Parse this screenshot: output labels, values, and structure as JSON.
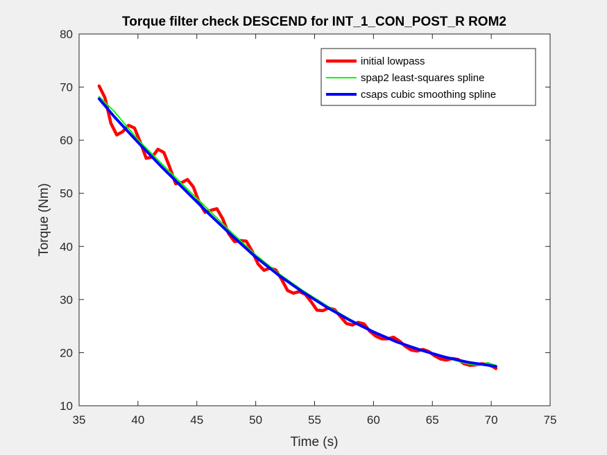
{
  "chart_data": {
    "type": "line",
    "title": "Torque filter check DESCEND for INT_1_CON_POST_R ROM2",
    "xlabel": "Time (s)",
    "ylabel": "Torque (Nm)",
    "xlim": [
      35,
      75
    ],
    "ylim": [
      10,
      80
    ],
    "xticks": [
      35,
      40,
      45,
      50,
      55,
      60,
      65,
      70,
      75
    ],
    "yticks": [
      10,
      20,
      30,
      40,
      50,
      60,
      70,
      80
    ],
    "grid": false,
    "legend_position": "top-right",
    "series": [
      {
        "name": "initial lowpass",
        "color": "#ff0000",
        "x": [
          36.7,
          37.2,
          37.7,
          38.2,
          38.7,
          39.2,
          39.7,
          40.2,
          40.7,
          41.2,
          41.7,
          42.2,
          42.7,
          43.2,
          43.7,
          44.2,
          44.7,
          45.2,
          45.7,
          46.2,
          46.7,
          47.2,
          47.7,
          48.2,
          48.7,
          49.2,
          49.7,
          50.2,
          50.7,
          51.2,
          51.7,
          52.2,
          52.7,
          53.2,
          53.7,
          54.2,
          54.7,
          55.2,
          55.7,
          56.2,
          56.7,
          57.2,
          57.7,
          58.2,
          58.7,
          59.2,
          59.7,
          60.2,
          60.7,
          61.2,
          61.7,
          62.2,
          62.7,
          63.2,
          63.7,
          64.2,
          64.7,
          65.2,
          65.7,
          66.2,
          66.7,
          67.2,
          67.7,
          68.2,
          68.7,
          69.2,
          69.7,
          70.2,
          70.4
        ],
        "y": [
          70.2,
          68.0,
          63.2,
          61.0,
          61.6,
          62.8,
          62.3,
          59.6,
          56.6,
          56.8,
          58.3,
          57.7,
          54.9,
          51.8,
          52.0,
          52.6,
          51.2,
          48.3,
          46.4,
          46.8,
          47.1,
          45.2,
          42.4,
          40.9,
          41.1,
          41.0,
          39.1,
          36.7,
          35.5,
          35.9,
          35.6,
          33.8,
          31.7,
          31.2,
          31.5,
          31.0,
          29.6,
          28.0,
          27.9,
          28.4,
          28.1,
          26.8,
          25.5,
          25.2,
          25.7,
          25.4,
          24.0,
          23.1,
          22.6,
          22.6,
          22.9,
          22.2,
          21.2,
          20.5,
          20.3,
          20.6,
          20.2,
          19.4,
          18.8,
          18.6,
          18.9,
          18.7,
          17.9,
          17.6,
          17.7,
          17.9,
          17.8,
          17.3,
          17.0
        ]
      },
      {
        "name": "spap2 least-squares spline",
        "color": "#00ff00",
        "x": [
          36.7,
          38,
          40,
          42,
          44,
          46,
          48,
          50,
          52,
          54,
          56,
          58,
          60,
          62,
          64,
          66,
          68,
          69,
          69.7,
          70.4
        ],
        "y": [
          68.2,
          65.4,
          60.1,
          55.6,
          51.2,
          46.9,
          42.5,
          38.4,
          34.8,
          31.7,
          28.9,
          26.3,
          24.0,
          22.1,
          20.5,
          19.1,
          17.9,
          17.6,
          18.1,
          17.6
        ]
      },
      {
        "name": "csaps cubic smoothing spline",
        "color": "#0000ff",
        "x": [
          36.7,
          38,
          40,
          42,
          44,
          46,
          48,
          50,
          52,
          54,
          56,
          58,
          60,
          62,
          64,
          66,
          68,
          70.4
        ],
        "y": [
          67.8,
          64.4,
          59.6,
          55.0,
          50.6,
          46.2,
          42.0,
          38.0,
          34.5,
          31.4,
          28.6,
          26.1,
          23.9,
          22.0,
          20.5,
          19.2,
          18.2,
          17.4
        ]
      }
    ]
  }
}
